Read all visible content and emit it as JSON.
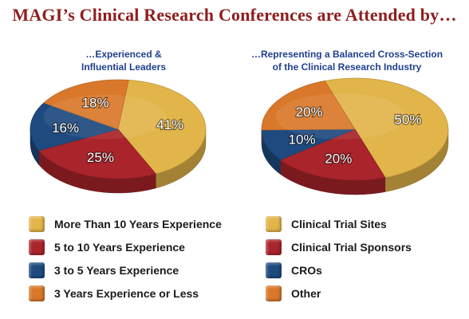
{
  "title": "MAGI’s Clinical Research Conferences are Attended by…",
  "colors": {
    "yellow": "#e2b54a",
    "red": "#a9242b",
    "blue": "#1e4a7f",
    "orange": "#d9782a",
    "title": "#8f1d1d",
    "subtitle": "#1f3f8f"
  },
  "chart_data": [
    {
      "type": "pie",
      "title": "…Experienced & Influential Leaders",
      "title_lines": [
        "…Experienced &",
        "Influential Leaders"
      ],
      "categories": [
        "More Than 10 Years Experience",
        "5 to 10 Years Experience",
        "3 to 5 Years Experience",
        "3 Years Experience or Less"
      ],
      "values": [
        41,
        25,
        16,
        18
      ],
      "labels": [
        "41%",
        "25%",
        "16%",
        "18%"
      ],
      "colors": [
        "#e2b54a",
        "#a9242b",
        "#1e4a7f",
        "#d9782a"
      ],
      "legend_position": "bottom"
    },
    {
      "type": "pie",
      "title": "…Representing a Balanced Cross-Section of the Clinical Research Industry",
      "title_lines": [
        "…Representing a Balanced Cross-Section",
        "of the Clinical Research Industry"
      ],
      "categories": [
        "Clinical Trial Sites",
        "Clinical Trial Sponsors",
        "CROs",
        "Other"
      ],
      "values": [
        50,
        20,
        10,
        20
      ],
      "labels": [
        "50%",
        "20%",
        "10%",
        "20%"
      ],
      "colors": [
        "#e2b54a",
        "#a9242b",
        "#1e4a7f",
        "#d9782a"
      ],
      "legend_position": "bottom"
    }
  ]
}
